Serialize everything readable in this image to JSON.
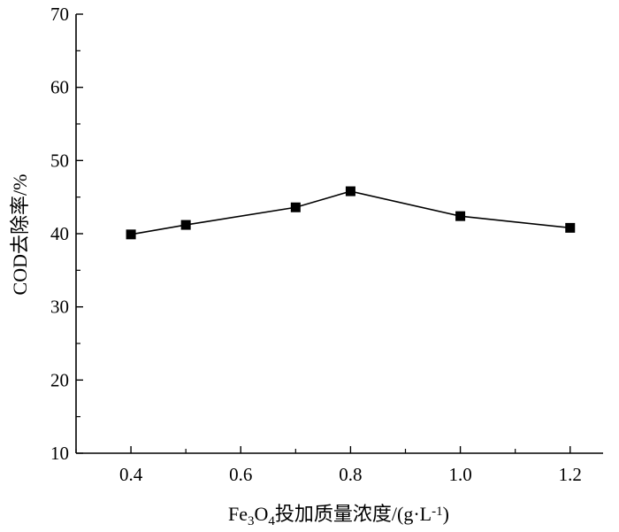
{
  "chart_data": {
    "type": "line",
    "x": [
      0.4,
      0.5,
      0.7,
      0.8,
      1.0,
      1.2
    ],
    "series": [
      {
        "values": [
          39.9,
          41.2,
          43.6,
          45.8,
          42.4,
          40.8
        ]
      }
    ],
    "xlabel": {
      "prefix": "Fe",
      "sub1": "3",
      "mid": "O",
      "sub2": "4",
      "suffix": "投加质量浓度/(g·L",
      "sup": "-1",
      "end": ")"
    },
    "ylabel": "COD去除率/%",
    "xticks": [
      "0.4",
      "0.6",
      "0.8",
      "1.0",
      "1.2"
    ],
    "xtick_values": [
      0.4,
      0.6,
      0.8,
      1.0,
      1.2
    ],
    "yticks": [
      "10",
      "20",
      "30",
      "40",
      "50",
      "60",
      "70"
    ],
    "ytick_values": [
      10,
      20,
      30,
      40,
      50,
      60,
      70
    ],
    "xlim": [
      0.3,
      1.26
    ],
    "ylim": [
      10,
      70
    ],
    "grid": false,
    "marker": "square",
    "color": "#000000"
  }
}
